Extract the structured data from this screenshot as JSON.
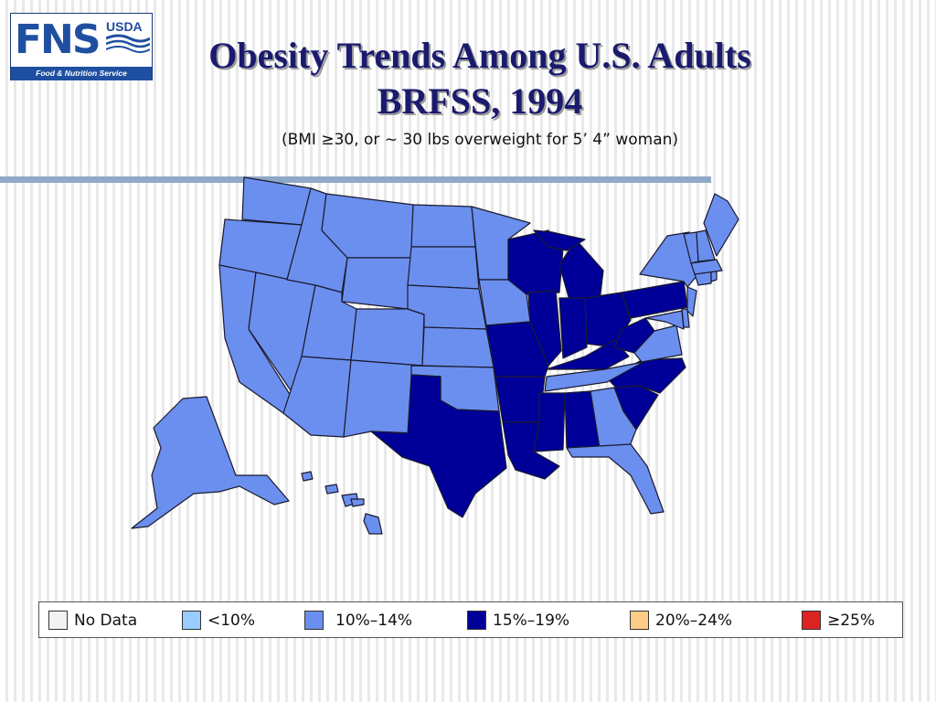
{
  "logo": {
    "fns": "FNS",
    "usda": "USDA",
    "band_text": "Food & Nutrition Service"
  },
  "title": {
    "line1": "Obesity Trends Among U.S. Adults",
    "line2": "BRFSS, 1994",
    "subtitle": "(BMI ≥30, or ~ 30 lbs overweight for 5’ 4” woman)"
  },
  "colors": {
    "no_data": "#f2f2f2",
    "lt10": "#99ccff",
    "c10_14": "#6b8fee",
    "c15_19": "#000099",
    "c20_24": "#ffcc88",
    "ge25": "#dd2222",
    "border": "#1a1a2e"
  },
  "legend": [
    {
      "label": "No Data",
      "color": "#f2f2f2"
    },
    {
      "label": "<10%",
      "color": "#99ccff"
    },
    {
      "label": "10%–14%",
      "color": "#6b8fee"
    },
    {
      "label": "15%–19%",
      "color": "#000099"
    },
    {
      "label": "20%–24%",
      "color": "#ffcc88"
    },
    {
      "label": "≥25%",
      "color": "#dd2222"
    }
  ],
  "states_by_category": {
    "10%–14%": [
      "WA",
      "OR",
      "CA",
      "NV",
      "ID",
      "MT",
      "WY",
      "UT",
      "CO",
      "AZ",
      "NM",
      "ND",
      "SD",
      "NE",
      "KS",
      "OK",
      "MN",
      "IA",
      "TN",
      "GA",
      "FL",
      "VA",
      "MD",
      "DE",
      "NJ",
      "NY",
      "CT",
      "RI",
      "MA",
      "VT",
      "NH",
      "ME",
      "AK",
      "HI"
    ],
    "15%–19%": [
      "TX",
      "MO",
      "AR",
      "LA",
      "MS",
      "AL",
      "WI",
      "MI",
      "IL",
      "IN",
      "OH",
      "KY",
      "WV",
      "PA",
      "NC",
      "SC"
    ]
  }
}
